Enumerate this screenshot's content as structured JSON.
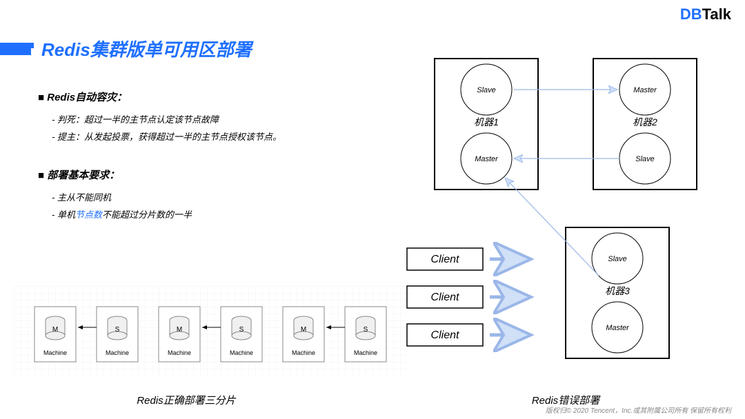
{
  "logo": {
    "prefix": "DB",
    "suffix": "Talk"
  },
  "title": "Redis集群版单可用区部署",
  "section1": {
    "heading": "Redis自动容灾：",
    "b1": "判死：超过一半的主节点认定该节点故障",
    "b2": "提主：从发起投票，获得超过一半的主节点授权该节点。"
  },
  "section2": {
    "heading": "部署基本要求：",
    "b1": "主从不能同机",
    "b2pre": "单机",
    "b2hl": "节点数",
    "b2post": "不能超过分片数的一半"
  },
  "correct": {
    "caption": "Redis正确部署三分片",
    "machines": [
      "Machine",
      "Machine",
      "Machine",
      "Machine",
      "Machine",
      "Machine"
    ],
    "labels": [
      "M",
      "S",
      "M",
      "S",
      "M",
      "S"
    ]
  },
  "wrong": {
    "caption": "Redis错误部署",
    "box1": "机器1",
    "box2": "机器2",
    "box3": "机器3",
    "n1": "Slave",
    "n2": "Master",
    "n3": "Master",
    "n4": "Slave",
    "n5": "Slave",
    "n6": "Master",
    "clients": [
      "Client",
      "Client",
      "Client"
    ]
  },
  "footer": "版权归© 2020 Tencent，Inc.或其附属公司所有  保留所有权利",
  "colors": {
    "primary": "#1e6fff",
    "border": "#000",
    "grid": "#e8e8e8",
    "arrow_blue": "#9bb7e8",
    "arrow_fill": "#cfe0f7",
    "text": "#000"
  }
}
